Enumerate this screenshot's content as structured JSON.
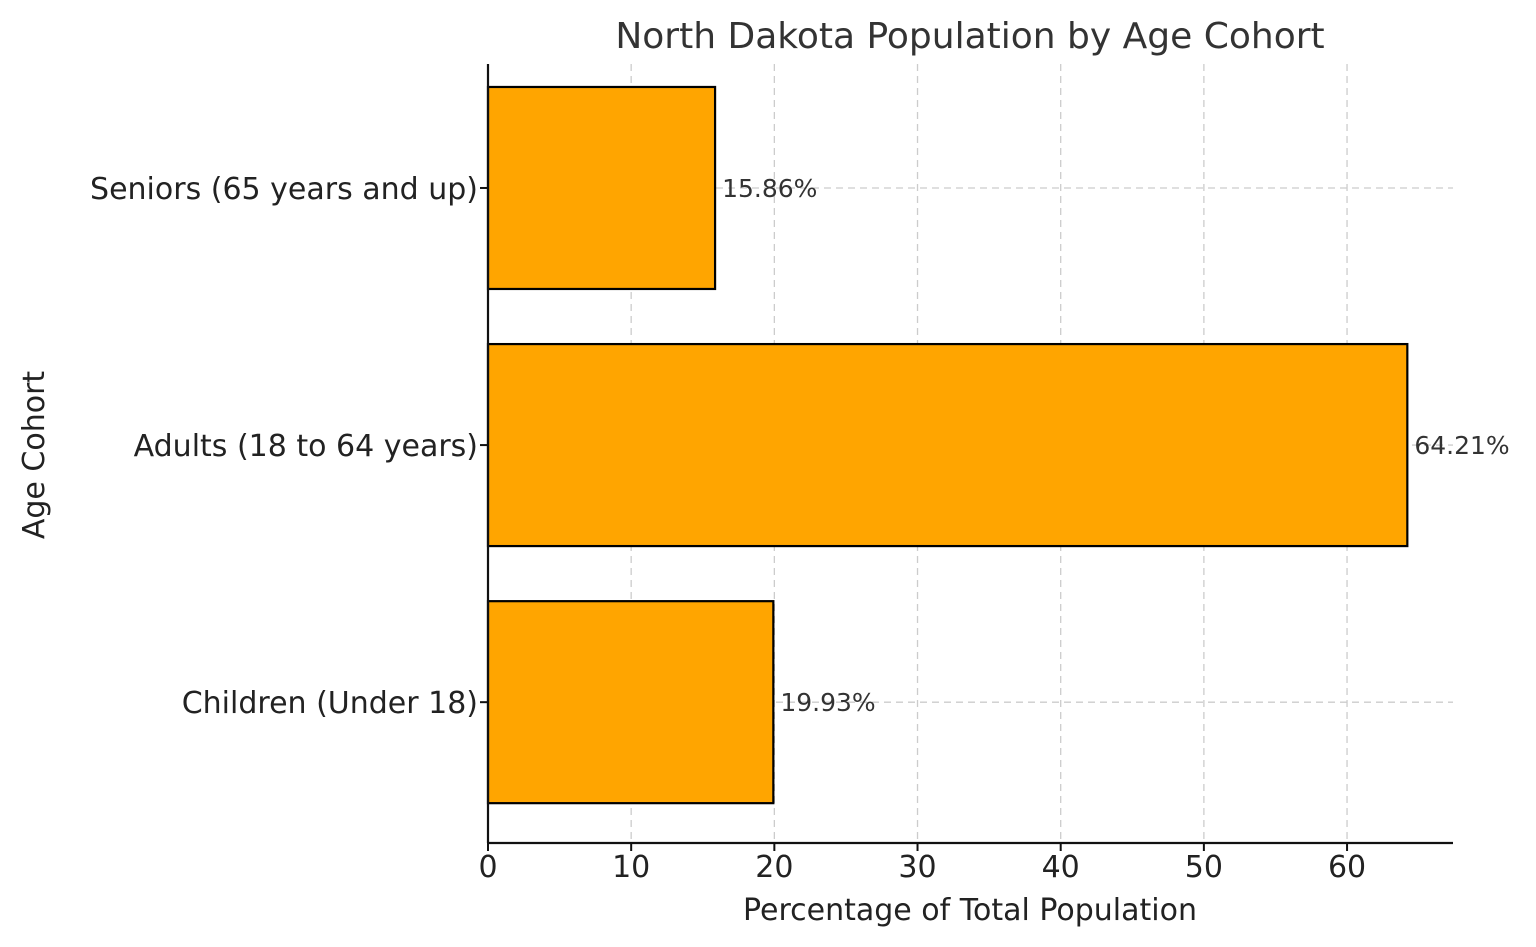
{
  "chart_data": {
    "type": "bar",
    "orientation": "horizontal",
    "title": "North Dakota Population by Age Cohort",
    "xlabel": "Percentage of Total Population",
    "ylabel": "Age Cohort",
    "categories": [
      "Children (Under 18)",
      "Adults (18 to 64 years)",
      "Seniors (65 years and up)"
    ],
    "values": [
      19.93,
      64.21,
      15.86
    ],
    "data_labels": [
      "19.93%",
      "64.21%",
      "15.86%"
    ],
    "xlim": [
      0,
      67.4
    ],
    "xticks": [
      0,
      10,
      20,
      30,
      40,
      50,
      60
    ],
    "xtick_labels": [
      "0",
      "10",
      "20",
      "30",
      "40",
      "50",
      "60"
    ],
    "grid": true,
    "colors": {
      "bar_fill": "#FFA500",
      "bar_edge": "#000000"
    }
  }
}
